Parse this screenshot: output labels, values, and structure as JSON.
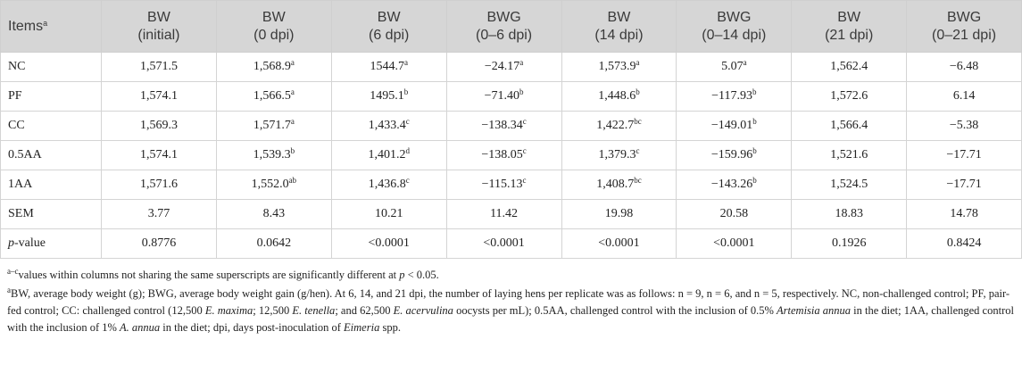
{
  "table": {
    "header": [
      [
        {
          "t": "Items"
        },
        {
          "t": "a",
          "sup": true
        }
      ],
      {
        "name": "BW",
        "detail": "(initial)"
      },
      {
        "name": "BW",
        "detail": "(0 dpi)"
      },
      {
        "name": "BW",
        "detail": "(6 dpi)"
      },
      {
        "name": "BWG",
        "detail": "(0–6 dpi)"
      },
      {
        "name": "BW",
        "detail": "(14 dpi)"
      },
      {
        "name": "BWG",
        "detail": "(0–14 dpi)"
      },
      {
        "name": "BW",
        "detail": "(21 dpi)"
      },
      {
        "name": "BWG",
        "detail": "(0–21 dpi)"
      }
    ],
    "rows": [
      [
        "NC",
        "1,571.5",
        [
          {
            "t": "1,568.9"
          },
          {
            "t": "a",
            "sup": true
          }
        ],
        [
          {
            "t": "1544.7"
          },
          {
            "t": "a",
            "sup": true
          }
        ],
        [
          {
            "t": "−24.17"
          },
          {
            "t": "a",
            "sup": true
          }
        ],
        [
          {
            "t": "1,573.9"
          },
          {
            "t": "a",
            "sup": true
          }
        ],
        [
          {
            "t": "5.07"
          },
          {
            "t": "a",
            "sup": true
          }
        ],
        "1,562.4",
        "−6.48"
      ],
      [
        "PF",
        "1,574.1",
        [
          {
            "t": "1,566.5"
          },
          {
            "t": "a",
            "sup": true
          }
        ],
        [
          {
            "t": "1495.1"
          },
          {
            "t": "b",
            "sup": true
          }
        ],
        [
          {
            "t": "−71.40"
          },
          {
            "t": "b",
            "sup": true
          }
        ],
        [
          {
            "t": "1,448.6"
          },
          {
            "t": "b",
            "sup": true
          }
        ],
        [
          {
            "t": "−117.93"
          },
          {
            "t": "b",
            "sup": true
          }
        ],
        "1,572.6",
        "6.14"
      ],
      [
        "CC",
        "1,569.3",
        [
          {
            "t": "1,571.7"
          },
          {
            "t": "a",
            "sup": true
          }
        ],
        [
          {
            "t": "1,433.4"
          },
          {
            "t": "c",
            "sup": true
          }
        ],
        [
          {
            "t": "−138.34"
          },
          {
            "t": "c",
            "sup": true
          }
        ],
        [
          {
            "t": "1,422.7"
          },
          {
            "t": "bc",
            "sup": true
          }
        ],
        [
          {
            "t": "−149.01"
          },
          {
            "t": "b",
            "sup": true
          }
        ],
        "1,566.4",
        "−5.38"
      ],
      [
        "0.5AA",
        "1,574.1",
        [
          {
            "t": "1,539.3"
          },
          {
            "t": "b",
            "sup": true
          }
        ],
        [
          {
            "t": "1,401.2"
          },
          {
            "t": "d",
            "sup": true
          }
        ],
        [
          {
            "t": "−138.05"
          },
          {
            "t": "c",
            "sup": true
          }
        ],
        [
          {
            "t": "1,379.3"
          },
          {
            "t": "c",
            "sup": true
          }
        ],
        [
          {
            "t": "−159.96"
          },
          {
            "t": "b",
            "sup": true
          }
        ],
        "1,521.6",
        "−17.71"
      ],
      [
        "1AA",
        "1,571.6",
        [
          {
            "t": "1,552.0"
          },
          {
            "t": "ab",
            "sup": true
          }
        ],
        [
          {
            "t": "1,436.8"
          },
          {
            "t": "c",
            "sup": true
          }
        ],
        [
          {
            "t": "−115.13"
          },
          {
            "t": "c",
            "sup": true
          }
        ],
        [
          {
            "t": "1,408.7"
          },
          {
            "t": "bc",
            "sup": true
          }
        ],
        [
          {
            "t": "−143.26"
          },
          {
            "t": "b",
            "sup": true
          }
        ],
        "1,524.5",
        "−17.71"
      ],
      [
        "SEM",
        "3.77",
        "8.43",
        "10.21",
        "11.42",
        "19.98",
        "20.58",
        "18.83",
        "14.78"
      ],
      [
        [
          {
            "t": "p",
            "i": true
          },
          {
            "t": "-value"
          }
        ],
        "0.8776",
        "0.0642",
        "<0.0001",
        "<0.0001",
        "<0.0001",
        "<0.0001",
        "0.1926",
        "0.8424"
      ]
    ],
    "footnotes": [
      [
        {
          "t": "a–c",
          "sup": true
        },
        {
          "t": "values within columns not sharing the same superscripts are significantly different at "
        },
        {
          "t": "p",
          "i": true
        },
        {
          "t": " < 0.05."
        }
      ],
      [
        {
          "t": "a",
          "sup": true
        },
        {
          "t": "BW, average body weight (g); BWG, average body weight gain (g/hen). At 6, 14, and 21 dpi, the number of laying hens per replicate was as follows: n = 9, n = 6, and n = 5, respectively. NC, non-challenged control; PF, pair-fed control; CC: challenged control (12,500 "
        },
        {
          "t": "E. maxima",
          "i": true
        },
        {
          "t": "; 12,500 "
        },
        {
          "t": "E. tenella",
          "i": true
        },
        {
          "t": "; and 62,500 "
        },
        {
          "t": "E. acervulina",
          "i": true
        },
        {
          "t": " oocysts per mL); 0.5AA, challenged control with the inclusion of 0.5% "
        },
        {
          "t": "Artemisia annua",
          "i": true
        },
        {
          "t": " in the diet; 1AA, challenged control with the inclusion of 1% "
        },
        {
          "t": "A. annua",
          "i": true
        },
        {
          "t": " in the diet; dpi, days post-inoculation of "
        },
        {
          "t": "Eimeria",
          "i": true
        },
        {
          "t": " spp."
        }
      ]
    ]
  }
}
